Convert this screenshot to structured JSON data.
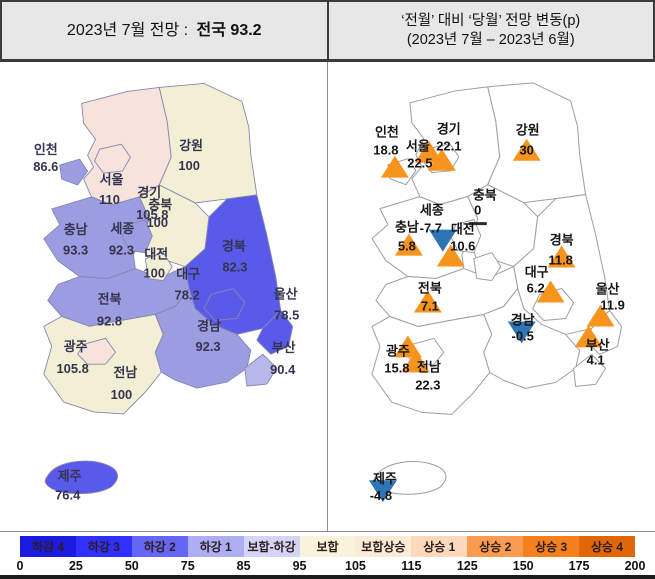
{
  "left_panel": {
    "title_prefix": "2023년 7월 전망 :",
    "title_value": "전국 93.2"
  },
  "right_panel": {
    "title_line1": "‘전월’ 대비 ‘당월’ 전망 변동(p)",
    "title_line2": "(2023년 7월 – 2023년 6월)"
  },
  "regions": [
    {
      "id": "gyeonggi",
      "name": "경기",
      "value": "105.8",
      "change": "22.1",
      "direction": "up",
      "fill": "#F6E3DB"
    },
    {
      "id": "gangwon",
      "name": "강원",
      "value": "100",
      "change": "30",
      "direction": "up",
      "fill": "#F3EFD5"
    },
    {
      "id": "chungbuk",
      "name": "충북",
      "value": "100",
      "change": "0",
      "direction": "flat",
      "fill": "#F3EFD5"
    },
    {
      "id": "chungnam",
      "name": "충남",
      "value": "93.3",
      "change": "5.8",
      "direction": "up",
      "fill": "#9C9CE0"
    },
    {
      "id": "gyeongbuk",
      "name": "경북",
      "value": "82.3",
      "change": "11.8",
      "direction": "up",
      "fill": "#5A5AEA"
    },
    {
      "id": "jeonbuk",
      "name": "전북",
      "value": "92.8",
      "change": "7.1",
      "direction": "up",
      "fill": "#9C9CE0"
    },
    {
      "id": "jeonnam",
      "name": "전남",
      "value": "100",
      "change": "22.3",
      "direction": "up",
      "fill": "#F3EFD5"
    },
    {
      "id": "gyeongnam",
      "name": "경남",
      "value": "92.3",
      "change": "-0.5",
      "direction": "down",
      "fill": "#9C9CE0"
    },
    {
      "id": "ulsan",
      "name": "울산",
      "value": "78.5",
      "change": "11.9",
      "direction": "up",
      "fill": "#5A5AEA"
    },
    {
      "id": "busan",
      "name": "부산",
      "value": "90.4",
      "change": "4.1",
      "direction": "up",
      "fill": "#B7B7EA"
    },
    {
      "id": "daegu",
      "name": "대구",
      "value": "78.2",
      "change": "6.2",
      "direction": "up",
      "fill": "#5A5AEA"
    },
    {
      "id": "sejong",
      "name": "세종",
      "value": "92.3",
      "change": "-7.7",
      "direction": "down",
      "fill": "#9C9CE0"
    },
    {
      "id": "daejeon",
      "name": "대전",
      "value": "100",
      "change": "10.6",
      "direction": "up",
      "fill": "#F3EFD5"
    },
    {
      "id": "gwangju",
      "name": "광주",
      "value": "105.8",
      "change": "15.8",
      "direction": "up",
      "fill": "#F6E3DB"
    },
    {
      "id": "seoul",
      "name": "서울",
      "value": "110",
      "change": "22.5",
      "direction": "up",
      "fill": "#F6E3DB"
    },
    {
      "id": "incheon",
      "name": "인천",
      "value": "86.6",
      "change": "18.8",
      "direction": "up",
      "fill": "#9C9CE0"
    },
    {
      "id": "jeju",
      "name": "제주",
      "value": "76.4",
      "change": "-4.8",
      "direction": "down",
      "fill": "#5A5AEA"
    }
  ],
  "symbols": {
    "up_color": "#F7941D",
    "down_color": "#2E75B6",
    "flat_color": "#2b2b2b"
  },
  "map_style": {
    "left_stroke": "#8686B0",
    "left_text": "#34344F",
    "right_fill": "#FFFFFF",
    "right_stroke": "#9E9E9E",
    "right_text": "#141414"
  },
  "legend": {
    "classes": [
      {
        "label": "하강 4",
        "color": "#1B1BE0"
      },
      {
        "label": "하강 3",
        "color": "#2F2FFF"
      },
      {
        "label": "하강 2",
        "color": "#6666F5"
      },
      {
        "label": "하강 1",
        "color": "#ADADF2"
      },
      {
        "label": "보합-하강",
        "color": "#D4D4F7"
      },
      {
        "label": "보합",
        "color": "#F8F3DA"
      },
      {
        "label": "보합상승",
        "color": "#FBEBD7"
      },
      {
        "label": "상승 1",
        "color": "#FBD9BC"
      },
      {
        "label": "상승 2",
        "color": "#F99C50"
      },
      {
        "label": "상승 3",
        "color": "#F5811E"
      },
      {
        "label": "상승 4",
        "color": "#E0660A"
      }
    ],
    "ticks": [
      "0",
      "25",
      "50",
      "75",
      "85",
      "95",
      "105",
      "115",
      "125",
      "150",
      "175",
      "200"
    ]
  },
  "chart_data": {
    "type": "choropleth_map_pair",
    "title_left": "2023년 7월 전망 : 전국 93.2",
    "title_right": "‘전월’ 대비 ‘당월’ 전망 변동(p) (2023년 7월 – 2023년 6월)",
    "national_value": 93.2,
    "categories": [
      "인천",
      "서울",
      "경기",
      "강원",
      "충북",
      "충남",
      "세종",
      "대전",
      "경북",
      "대구",
      "울산",
      "전북",
      "경남",
      "부산",
      "광주",
      "전남",
      "제주"
    ],
    "series": [
      {
        "name": "2023년 7월 전망",
        "values": [
          86.6,
          110,
          105.8,
          100,
          100,
          93.3,
          92.3,
          100,
          82.3,
          78.2,
          78.5,
          92.8,
          92.3,
          90.4,
          105.8,
          100,
          76.4
        ]
      },
      {
        "name": "전월 대비 변동(p)",
        "values": [
          18.8,
          22.5,
          22.1,
          30,
          0,
          5.8,
          -7.7,
          10.6,
          11.8,
          6.2,
          11.9,
          7.1,
          -0.5,
          4.1,
          15.8,
          22.3,
          -4.8
        ]
      }
    ],
    "scale_breaks": [
      0,
      25,
      50,
      75,
      85,
      95,
      105,
      115,
      125,
      150,
      175,
      200
    ],
    "scale_labels": [
      "하강 4",
      "하강 3",
      "하강 2",
      "하강 1",
      "보합-하강",
      "보합",
      "보합상승",
      "상승 1",
      "상승 2",
      "상승 3",
      "상승 4"
    ]
  }
}
